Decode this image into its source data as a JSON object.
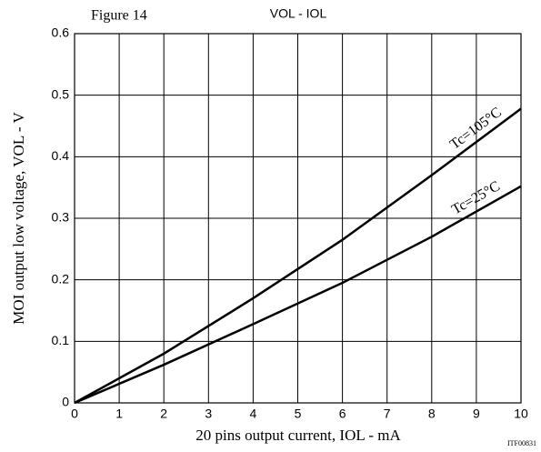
{
  "chart_data": {
    "type": "line",
    "figure_label": "Figure 14",
    "title": "VOL - IOL",
    "x_label": "20 pins output current, IOL - mA",
    "y_label": "MOI output low voltage, VOL - V",
    "code": "ITF00831",
    "x": [
      0,
      2,
      4,
      6,
      8,
      10
    ],
    "series": [
      {
        "name": "Tc=105°C",
        "color": "#000000",
        "values": [
          0,
          0.08,
          0.17,
          0.265,
          0.37,
          0.478
        ]
      },
      {
        "name": "Tc=25°C",
        "color": "#000000",
        "values": [
          0,
          0.062,
          0.128,
          0.195,
          0.27,
          0.352
        ]
      }
    ],
    "xlim": [
      0,
      10
    ],
    "xticks": [
      0,
      1,
      2,
      3,
      4,
      5,
      6,
      7,
      8,
      9,
      10
    ],
    "ylim": [
      0,
      0.6
    ],
    "yticks": [
      0,
      0.1,
      0.2,
      0.3,
      0.4,
      0.5,
      0.6
    ],
    "grid": true
  }
}
